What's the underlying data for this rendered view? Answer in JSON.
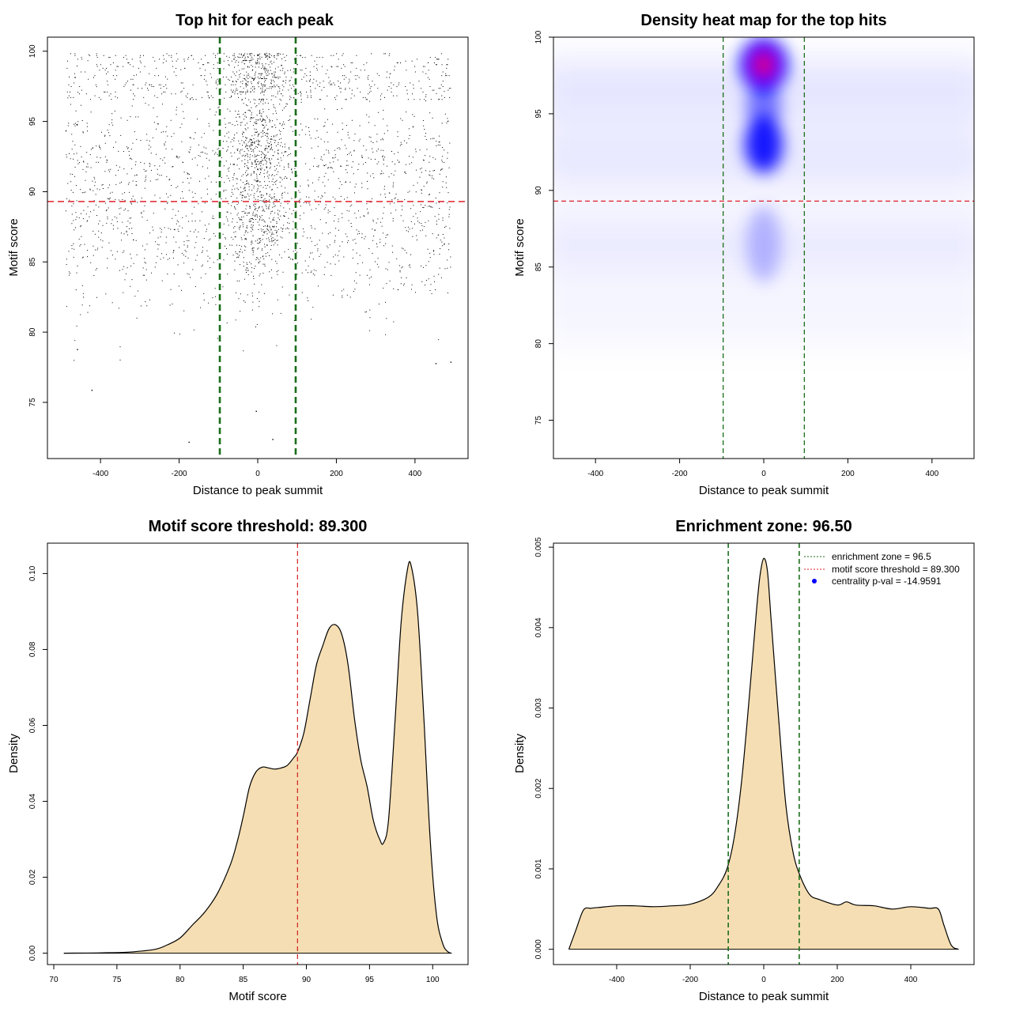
{
  "chart_data": [
    {
      "type": "scatter",
      "title": "Top hit for each peak",
      "xlabel": "Distance to peak summit",
      "ylabel": "Motif score",
      "xlim": [
        -535,
        535
      ],
      "ylim": [
        71.0,
        101.0
      ],
      "x_ticks": [
        -400,
        -200,
        0,
        200,
        400
      ],
      "y_ticks": [
        75,
        80,
        85,
        90,
        95,
        100
      ],
      "x_tick_labels": [
        "-400",
        "-200",
        "0",
        "200",
        "400"
      ],
      "y_tick_labels": [
        "75",
        "80",
        "85",
        "90",
        "95",
        "100"
      ],
      "threshold_hline": 89.3,
      "enrichment_vlines": [
        -96.5,
        96.5
      ],
      "point_count_estimate": 12000,
      "notable_points": [
        {
          "x": -176,
          "y": 72.2
        },
        {
          "x": 37,
          "y": 72.4
        },
        {
          "x": -5,
          "y": 74.4
        },
        {
          "x": -423,
          "y": 75.9
        },
        {
          "x": -460,
          "y": 78.8
        },
        {
          "x": 490,
          "y": 77.9
        },
        {
          "x": 452,
          "y": 77.8
        }
      ],
      "colors": {
        "points": "#000000",
        "threshold": "#e0202a",
        "enrichment": "#1a6e1a"
      },
      "grid": false
    },
    {
      "type": "heatmap",
      "title": "Density heat map for the top hits",
      "xlabel": "Distance to peak summit",
      "ylabel": "Motif score",
      "xlim": [
        -500,
        500
      ],
      "ylim": [
        72.5,
        100.0
      ],
      "x_ticks": [
        -400,
        -200,
        0,
        200,
        400
      ],
      "y_ticks": [
        75,
        80,
        85,
        90,
        95,
        100
      ],
      "x_tick_labels": [
        "-400",
        "-200",
        "0",
        "200",
        "400"
      ],
      "y_tick_labels": [
        "75",
        "80",
        "85",
        "90",
        "95",
        "100"
      ],
      "threshold_hline": 89.3,
      "enrichment_vlines": [
        -96.5,
        96.5
      ],
      "hotspots": [
        {
          "x": 0,
          "y": 98.2,
          "intensity": 1.0
        },
        {
          "x": 0,
          "y": 93.0,
          "intensity": 0.75
        },
        {
          "x": 0,
          "y": 86.5,
          "intensity": 0.3
        }
      ],
      "color_scale": [
        "#ffffff",
        "#0000ff",
        "#ff0000"
      ],
      "grid": false
    },
    {
      "type": "area",
      "title": "Motif score threshold: 89.300",
      "xlabel": "Motif score",
      "ylabel": "Density",
      "xlim": [
        69.5,
        102.8
      ],
      "ylim": [
        -0.003,
        0.108
      ],
      "x_ticks": [
        70,
        75,
        80,
        85,
        90,
        95,
        100
      ],
      "y_ticks": [
        0.0,
        0.02,
        0.04,
        0.06,
        0.08,
        0.1
      ],
      "x_tick_labels": [
        "70",
        "75",
        "80",
        "85",
        "90",
        "95",
        "100"
      ],
      "y_tick_labels": [
        "0.00",
        "0.02",
        "0.04",
        "0.06",
        "0.08",
        "0.10"
      ],
      "threshold_vline": 89.3,
      "x": [
        70.8,
        74.0,
        76.0,
        78.0,
        79.0,
        80.0,
        81.0,
        82.0,
        83.0,
        84.0,
        84.5,
        85.0,
        85.5,
        86.0,
        86.5,
        87.0,
        87.5,
        88.0,
        88.5,
        89.0,
        89.3,
        89.8,
        90.3,
        90.8,
        91.3,
        91.8,
        92.3,
        92.8,
        93.3,
        93.8,
        94.3,
        94.8,
        95.3,
        95.8,
        96.1,
        96.5,
        97.0,
        97.5,
        98.0,
        98.3,
        98.8,
        99.3,
        99.8,
        100.3,
        100.8,
        101.2,
        101.5
      ],
      "y": [
        0.0,
        0.0001,
        0.0003,
        0.001,
        0.0022,
        0.004,
        0.0075,
        0.011,
        0.016,
        0.0235,
        0.029,
        0.036,
        0.0438,
        0.0477,
        0.049,
        0.0488,
        0.0485,
        0.0488,
        0.0495,
        0.0515,
        0.053,
        0.058,
        0.067,
        0.076,
        0.081,
        0.0855,
        0.0865,
        0.084,
        0.076,
        0.062,
        0.051,
        0.044,
        0.035,
        0.03,
        0.029,
        0.035,
        0.06,
        0.087,
        0.101,
        0.102,
        0.09,
        0.062,
        0.03,
        0.01,
        0.0025,
        0.0004,
        0.0
      ],
      "fill": "#f5deb3",
      "line": "#000000",
      "threshold_color": "#d02020",
      "grid": false
    },
    {
      "type": "area",
      "title": "Enrichment zone: 96.50",
      "xlabel": "Distance to peak summit",
      "ylabel": "Density",
      "xlim": [
        -572,
        572
      ],
      "ylim": [
        -0.00019,
        0.00505
      ],
      "x_ticks": [
        -400,
        -200,
        0,
        200,
        400
      ],
      "y_ticks": [
        0.0,
        0.001,
        0.002,
        0.003,
        0.004,
        0.005
      ],
      "x_tick_labels": [
        "-400",
        "-200",
        "0",
        "200",
        "400"
      ],
      "y_tick_labels": [
        "0.000",
        "0.001",
        "0.002",
        "0.003",
        "0.004",
        "0.005"
      ],
      "enrichment_vlines": [
        -96.5,
        96.5
      ],
      "x": [
        -530,
        -510,
        -490,
        -470,
        -450,
        -400,
        -350,
        -300,
        -250,
        -200,
        -150,
        -125,
        -100,
        -80,
        -60,
        -40,
        -20,
        -10,
        0,
        10,
        20,
        40,
        60,
        80,
        100,
        125,
        150,
        200,
        225,
        250,
        300,
        350,
        400,
        450,
        475,
        490,
        510,
        530
      ],
      "y": [
        0.0,
        0.00025,
        0.00049,
        0.00051,
        0.00052,
        0.00054,
        0.00054,
        0.00053,
        0.00054,
        0.00056,
        0.00065,
        0.00078,
        0.001,
        0.0014,
        0.0021,
        0.0031,
        0.0042,
        0.00465,
        0.00486,
        0.0047,
        0.0041,
        0.0029,
        0.0018,
        0.0012,
        0.0009,
        0.00068,
        0.00062,
        0.00055,
        0.00059,
        0.00055,
        0.00054,
        0.0005,
        0.00053,
        0.00051,
        0.0005,
        0.0003,
        5e-05,
        0.0
      ],
      "fill": "#f5deb3",
      "line": "#000000",
      "enrichment_color": "#1a6e1a",
      "legend": {
        "position": "top-right",
        "entries": [
          {
            "label": "enrichment zone = 96.5",
            "color": "#1a6e1a",
            "style": "dotted-line"
          },
          {
            "label": "motif score threshold = 89.300",
            "color": "#e0202a",
            "style": "dotted-line"
          },
          {
            "label": "centrality p-val = -14.9591",
            "color": "#0000ff",
            "style": "point"
          }
        ]
      },
      "grid": false
    }
  ]
}
